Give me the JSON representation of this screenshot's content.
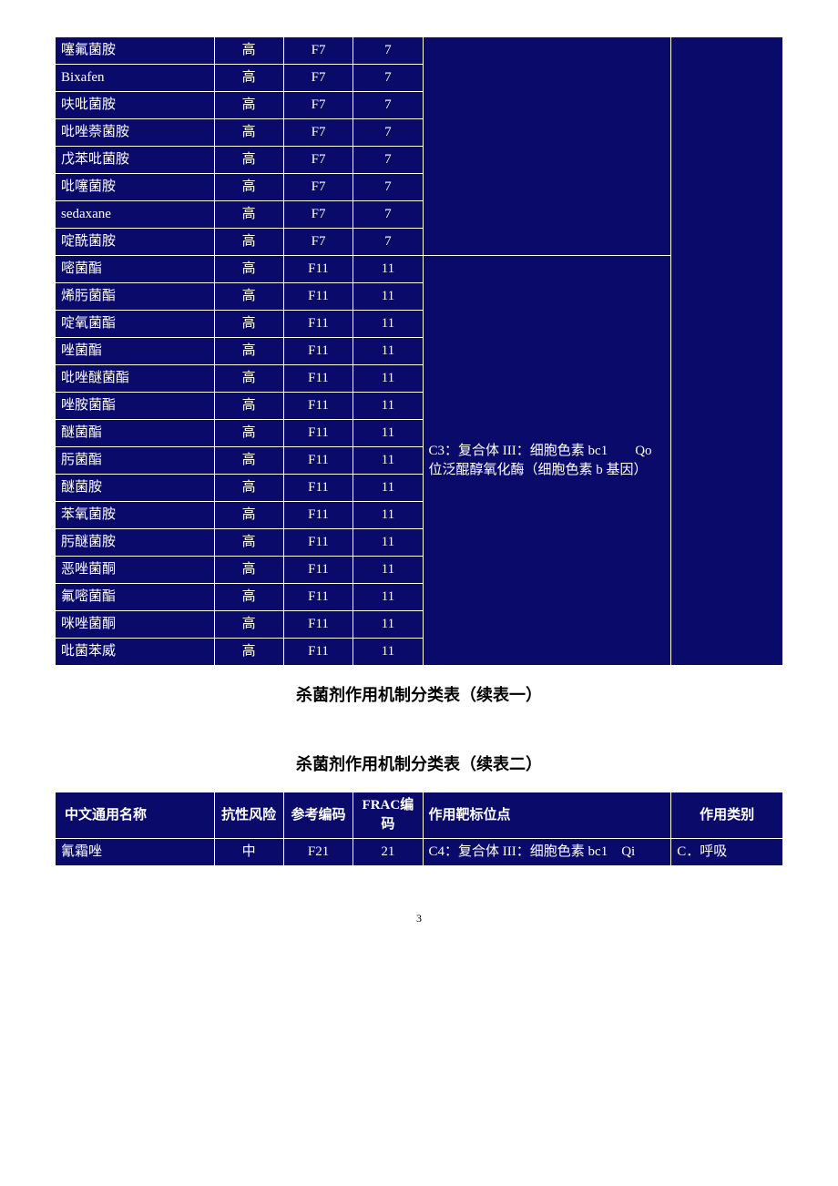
{
  "caption1": "杀菌剂作用机制分类表（续表一）",
  "caption2": "杀菌剂作用机制分类表（续表二）",
  "pageNumber": "3",
  "table1": {
    "target_c3": "C3：复合体 III：细胞色素 bc1　　Qo 位泛醌醇氧化酶（细胞色素 b 基因）",
    "rows": [
      {
        "name": "噻氟菌胺",
        "risk": "高",
        "ref": "F7",
        "frac": "7",
        "target": "",
        "cat": ""
      },
      {
        "name": "Bixafen",
        "risk": "高",
        "ref": "F7",
        "frac": "7",
        "target": "",
        "cat": ""
      },
      {
        "name": "呋吡菌胺",
        "risk": "高",
        "ref": "F7",
        "frac": "7",
        "target": "",
        "cat": ""
      },
      {
        "name": "吡唑萘菌胺",
        "risk": "高",
        "ref": "F7",
        "frac": "7",
        "target": "",
        "cat": ""
      },
      {
        "name": "戊苯吡菌胺",
        "risk": "高",
        "ref": "F7",
        "frac": "7",
        "target": "",
        "cat": ""
      },
      {
        "name": "吡噻菌胺",
        "risk": "高",
        "ref": "F7",
        "frac": "7",
        "target": "",
        "cat": ""
      },
      {
        "name": "sedaxane",
        "risk": "高",
        "ref": "F7",
        "frac": "7",
        "target": "",
        "cat": ""
      },
      {
        "name": "啶酰菌胺",
        "risk": "高",
        "ref": "F7",
        "frac": "7",
        "target": "",
        "cat": ""
      },
      {
        "name": "嘧菌酯",
        "risk": "高",
        "ref": "F11",
        "frac": "11",
        "target": "C3",
        "cat": ""
      },
      {
        "name": "烯肟菌酯",
        "risk": "高",
        "ref": "F11",
        "frac": "11",
        "target": "",
        "cat": ""
      },
      {
        "name": "啶氧菌酯",
        "risk": "高",
        "ref": "F11",
        "frac": "11",
        "target": "",
        "cat": ""
      },
      {
        "name": "唑菌酯",
        "risk": "高",
        "ref": "F11",
        "frac": "11",
        "target": "",
        "cat": ""
      },
      {
        "name": "吡唑醚菌酯",
        "risk": "高",
        "ref": "F11",
        "frac": "11",
        "target": "",
        "cat": ""
      },
      {
        "name": "唑胺菌酯",
        "risk": "高",
        "ref": "F11",
        "frac": "11",
        "target": "",
        "cat": ""
      },
      {
        "name": "醚菌酯",
        "risk": "高",
        "ref": "F11",
        "frac": "11",
        "target": "",
        "cat": ""
      },
      {
        "name": "肟菌酯",
        "risk": "高",
        "ref": "F11",
        "frac": "11",
        "target": "",
        "cat": ""
      },
      {
        "name": "醚菌胺",
        "risk": "高",
        "ref": "F11",
        "frac": "11",
        "target": "",
        "cat": ""
      },
      {
        "name": "苯氧菌胺",
        "risk": "高",
        "ref": "F11",
        "frac": "11",
        "target": "",
        "cat": ""
      },
      {
        "name": "肟醚菌胺",
        "risk": "高",
        "ref": "F11",
        "frac": "11",
        "target": "",
        "cat": ""
      },
      {
        "name": "恶唑菌酮",
        "risk": "高",
        "ref": "F11",
        "frac": "11",
        "target": "",
        "cat": ""
      },
      {
        "name": "氟嘧菌酯",
        "risk": "高",
        "ref": "F11",
        "frac": "11",
        "target": "",
        "cat": ""
      },
      {
        "name": "咪唑菌酮",
        "risk": "高",
        "ref": "F11",
        "frac": "11",
        "target": "",
        "cat": ""
      },
      {
        "name": "吡菌苯威",
        "risk": "高",
        "ref": "F11",
        "frac": "11",
        "target": "",
        "cat": ""
      }
    ]
  },
  "table2": {
    "headers": {
      "name": "中文通用名称",
      "risk": "抗性风险",
      "ref": "参考编码",
      "frac": "FRAC编码",
      "target": "作用靶标位点",
      "cat": "作用类别"
    },
    "rows": [
      {
        "name": "氰霜唑",
        "risk": "中",
        "ref": "F21",
        "frac": "21",
        "target": "C4：复合体 III：细胞色素 bc1　Qi",
        "cat": "C．呼吸"
      }
    ]
  },
  "colors": {
    "cell_bg": "#0a0a6b",
    "cell_border": "#ffffff",
    "text": "#ffffff",
    "page_bg": "#ffffff"
  }
}
